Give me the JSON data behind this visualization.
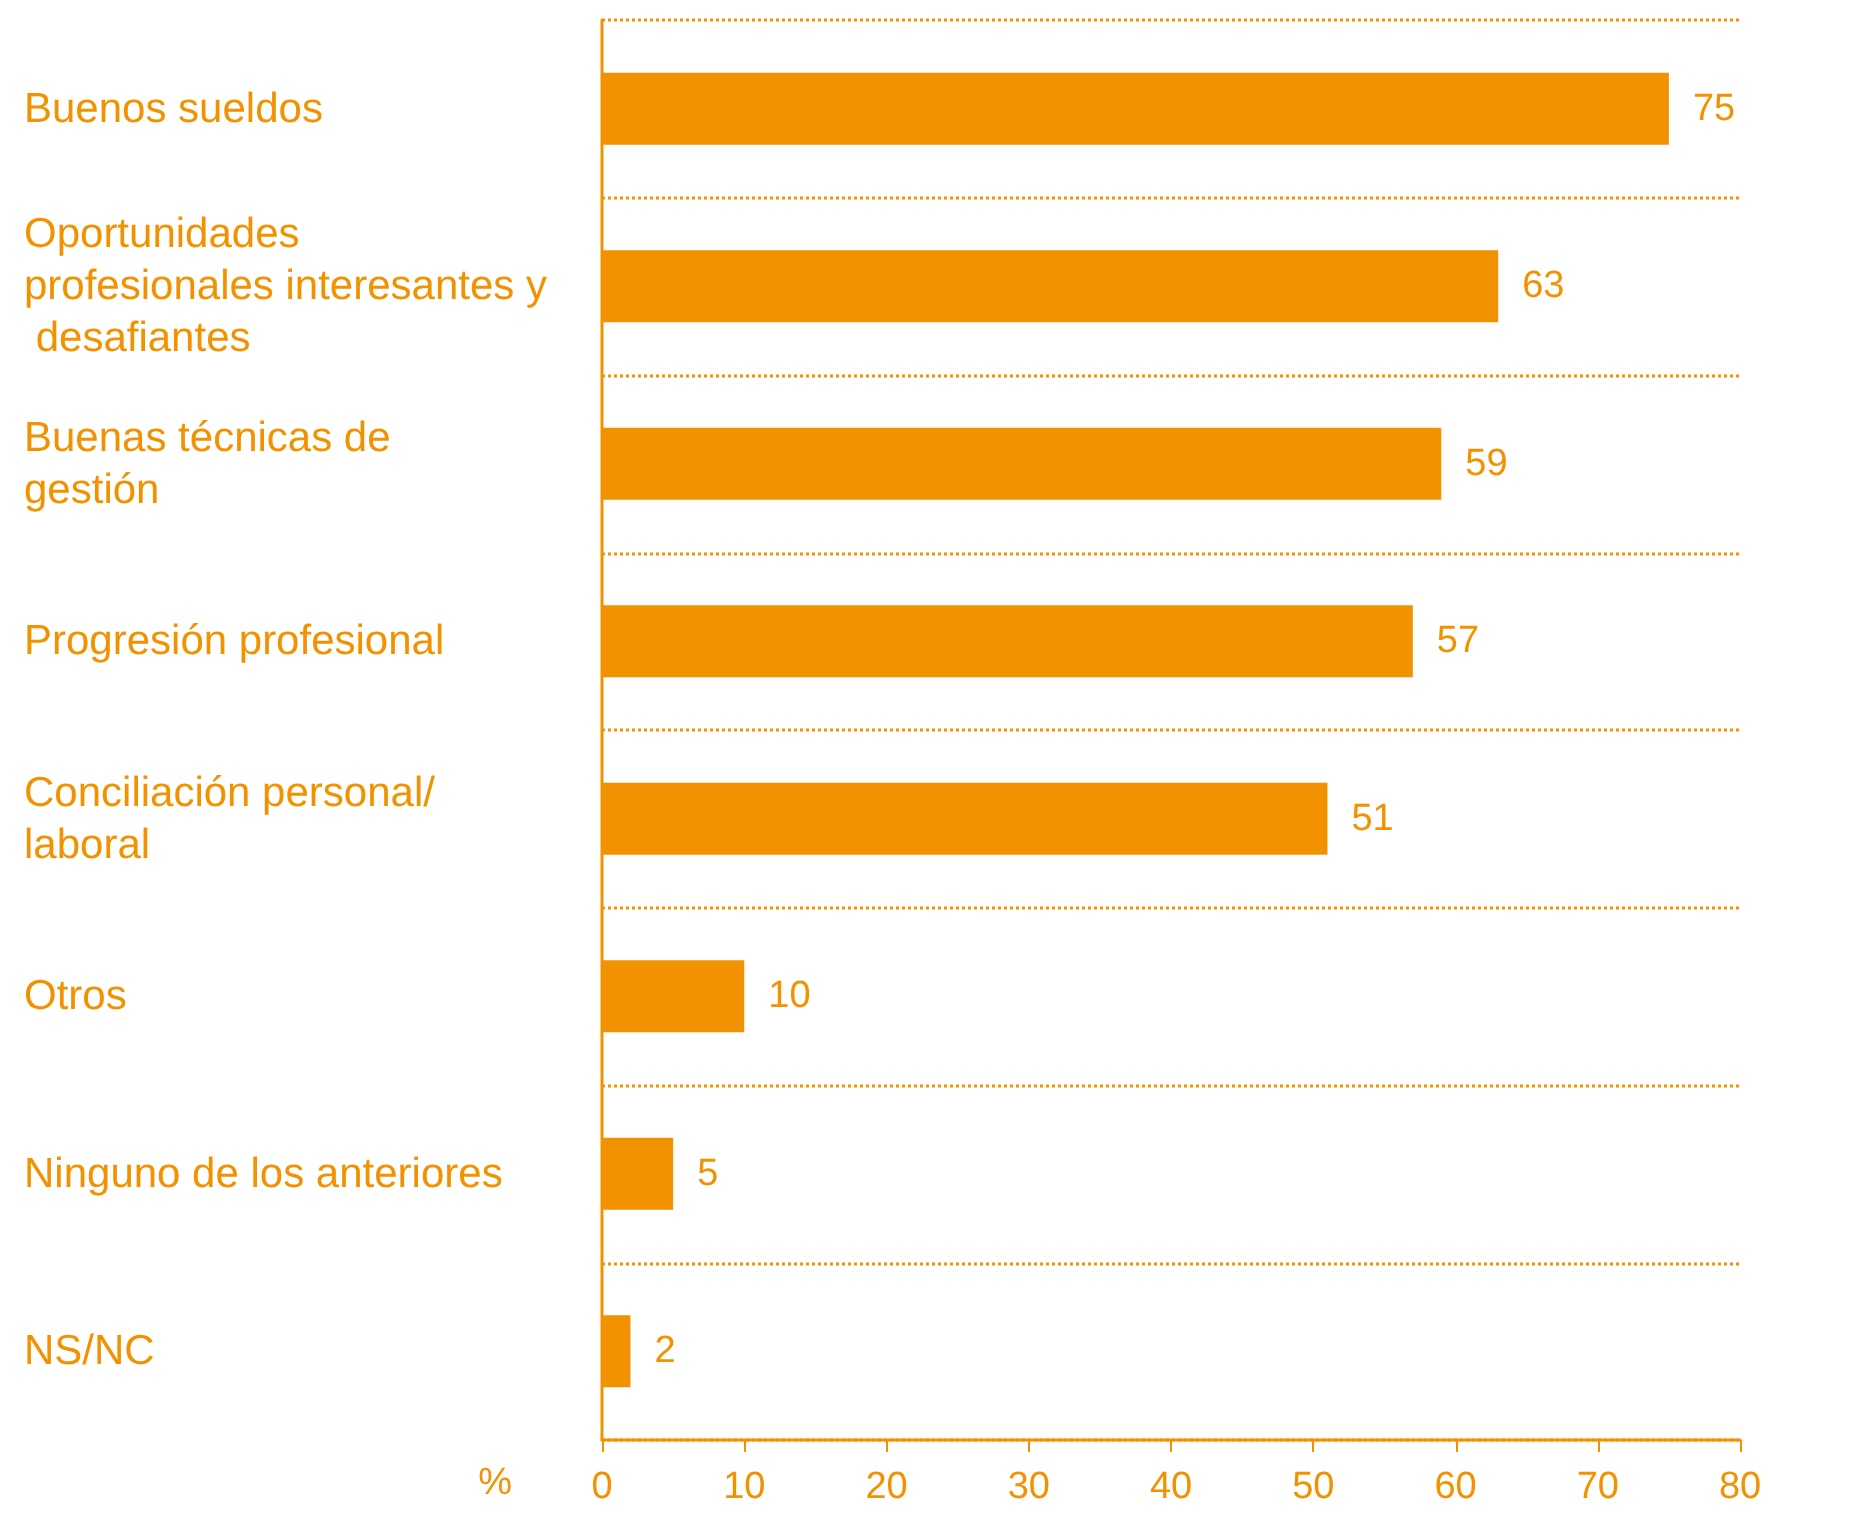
{
  "chart_data": {
    "type": "bar",
    "orientation": "horizontal",
    "categories": [
      "Buenos sueldos",
      "Oportunidades profesionales interesantes y desafiantes",
      "Buenas técnicas de gestión",
      "Progresión profesional",
      "Conciliación personal/laboral",
      "Otros",
      "Ninguno de los anteriores",
      "NS/NC"
    ],
    "values": [
      75,
      63,
      59,
      57,
      51,
      10,
      5,
      2
    ],
    "color": "#f39200",
    "xlabel": "%",
    "xlim": [
      0,
      80
    ],
    "xticks": [
      0,
      10,
      20,
      30,
      40,
      50,
      60,
      70,
      80
    ],
    "grid": "y",
    "data_labels": true
  }
}
